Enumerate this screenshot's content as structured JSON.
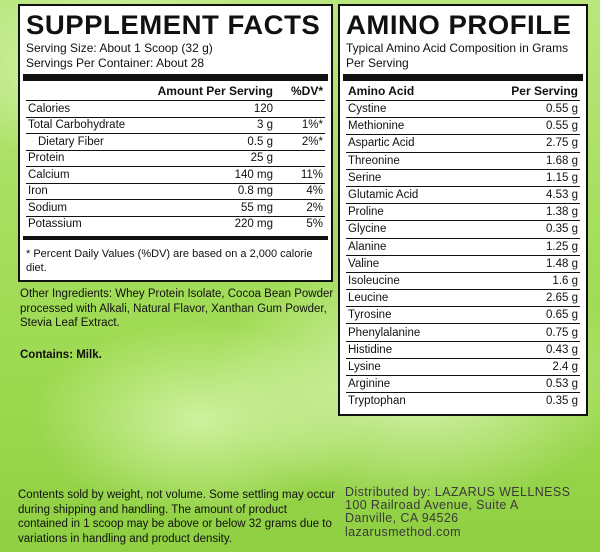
{
  "supplement_facts": {
    "title": "SUPPLEMENT FACTS",
    "serving_size": "Serving Size: About 1 Scoop (32 g)",
    "servings_per_container": "Servings Per Container: About 28",
    "col_amount": "Amount Per Serving",
    "col_dv": "%DV*",
    "rows": [
      {
        "name": "Calories",
        "amount": "120",
        "dv": ""
      },
      {
        "name": "Total Carbohydrate",
        "amount": "3 g",
        "dv": "1%*"
      },
      {
        "name": "Dietary Fiber",
        "amount": "0.5 g",
        "dv": "2%*"
      },
      {
        "name": "Protein",
        "amount": "25 g",
        "dv": ""
      },
      {
        "name": "Calcium",
        "amount": "140 mg",
        "dv": "11%"
      },
      {
        "name": "Iron",
        "amount": "0.8 mg",
        "dv": "4%"
      },
      {
        "name": "Sodium",
        "amount": "55 mg",
        "dv": "2%"
      },
      {
        "name": "Potassium",
        "amount": "220 mg",
        "dv": "5%"
      }
    ],
    "footnote": "* Percent Daily Values (%DV) are based on a 2,000 calorie diet."
  },
  "amino_profile": {
    "title": "AMINO PROFILE",
    "subtitle": "Typical Amino Acid Composition in Grams Per Serving",
    "col_name": "Amino Acid",
    "col_value": "Per Serving",
    "rows": [
      {
        "name": "Cystine",
        "value": "0.55 g"
      },
      {
        "name": "Methionine",
        "value": "0.55 g"
      },
      {
        "name": "Aspartic Acid",
        "value": "2.75 g"
      },
      {
        "name": "Threonine",
        "value": "1.68 g"
      },
      {
        "name": "Serine",
        "value": "1.15 g"
      },
      {
        "name": "Glutamic Acid",
        "value": "4.53 g"
      },
      {
        "name": "Proline",
        "value": "1.38 g"
      },
      {
        "name": "Glycine",
        "value": "0.35 g"
      },
      {
        "name": "Alanine",
        "value": "1.25 g"
      },
      {
        "name": "Valine",
        "value": "1.48 g"
      },
      {
        "name": "Isoleucine",
        "value": "1.6 g"
      },
      {
        "name": "Leucine",
        "value": "2.65 g"
      },
      {
        "name": "Tyrosine",
        "value": "0.65 g"
      },
      {
        "name": "Phenylalanine",
        "value": "0.75 g"
      },
      {
        "name": "Histidine",
        "value": "0.43 g"
      },
      {
        "name": "Lysine",
        "value": "2.4 g"
      },
      {
        "name": "Arginine",
        "value": "0.53 g"
      },
      {
        "name": "Tryptophan",
        "value": "0.35 g"
      }
    ]
  },
  "ingredients": "Other Ingredients: Whey Protein Isolate, Cocoa Bean Powder processed with Alkali, Natural Flavor, Xanthan Gum Powder, Stevia Leaf Extract.",
  "contains": "Contains: Milk.",
  "disclaimer": "Contents sold by weight, not volume. Some settling may occur during shipping and handling. The amount of product contained in 1 scoop may be above or below 32 grams due to variations in handling and product density.",
  "distributor": {
    "line1": "Distributed by: LAZARUS WELLNESS",
    "line2": "100 Railroad Avenue, Suite A",
    "line3": "Danville, CA 94526",
    "line4": "lazarusmethod.com"
  },
  "colors": {
    "background": "#a6de5e",
    "panel": "#ffffff",
    "ink": "#111111"
  }
}
